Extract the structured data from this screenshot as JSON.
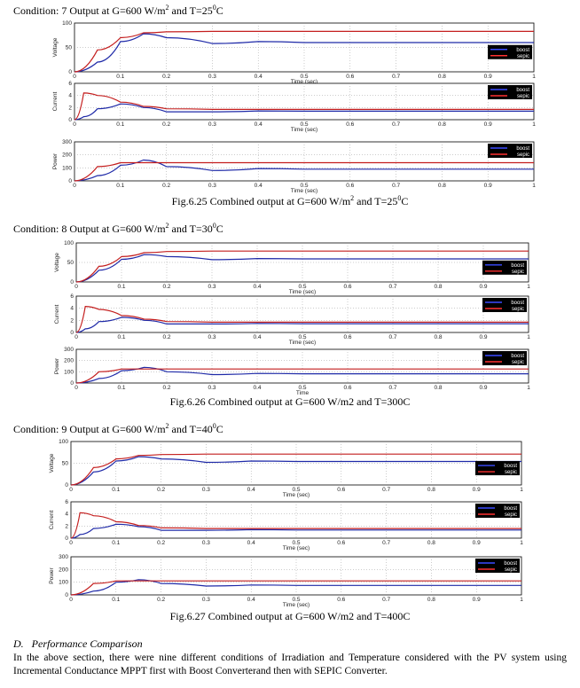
{
  "conditions": [
    {
      "pre": "Condition: 7 Output at G=600 W/m",
      "mid": " and T=25",
      "post": "C",
      "sup1": "2",
      "sup2": "0"
    },
    {
      "pre": "Condition: 8 Output at G=600 W/m",
      "mid": " and T=30",
      "post": "C",
      "sup1": "2",
      "sup2": "0"
    },
    {
      "pre": "Condition: 9 Output at G=600 W/m",
      "mid": " and T=40",
      "post": "C",
      "sup1": "2",
      "sup2": "0"
    }
  ],
  "captions": [
    {
      "pre": "Fig.6.25 Combined output at G=600 W/m",
      "mid": " and T=25",
      "post": "C",
      "sup1": "2",
      "sup2": "0"
    },
    {
      "text": "Fig.6.26 Combined output at G=600 W/m2 and T=300C"
    },
    {
      "text": "Fig.6.27 Combined output at G=600 W/m2 and T=400C"
    }
  ],
  "section": {
    "label": "D.",
    "title": "Performance Comparison"
  },
  "paragraph": "In the above section, there were nine different conditions of Irradiation and Temperature considered with the PV system using Incremental Conductance MPPT first with Boost Converterand then with SEPIC Converter.",
  "colors": {
    "boost": "#1f2aa8",
    "sepic": "#c41e1e",
    "grid": "#9a9a9a"
  },
  "chart_data": [
    {
      "type": "line",
      "figure": "Fig.6.25",
      "panel": "voltage",
      "ylabel": "Voltage",
      "xlabel": "Time (sec)",
      "xlim": [
        0,
        1
      ],
      "ylim": [
        0,
        100
      ],
      "yticks": [
        0,
        50,
        100
      ],
      "x": [
        0,
        0.05,
        0.1,
        0.15,
        0.2,
        0.3,
        0.4,
        0.5,
        0.6,
        0.7,
        0.8,
        0.9,
        1
      ],
      "series": [
        {
          "name": "boost",
          "values": [
            0,
            20,
            62,
            78,
            70,
            58,
            62,
            60,
            60,
            60,
            60,
            60,
            60
          ]
        },
        {
          "name": "sepic",
          "values": [
            0,
            45,
            70,
            80,
            82,
            83,
            83,
            83,
            83,
            83,
            83,
            83,
            83
          ]
        }
      ],
      "legend": "right",
      "grid": true
    },
    {
      "type": "line",
      "figure": "Fig.6.25",
      "panel": "current",
      "ylabel": "Current",
      "xlabel": "Time (sec)",
      "xlim": [
        0,
        1
      ],
      "ylim": [
        0,
        6
      ],
      "yticks": [
        0,
        2,
        4,
        6
      ],
      "x": [
        0,
        0.02,
        0.05,
        0.1,
        0.15,
        0.2,
        0.3,
        0.4,
        0.5,
        0.6,
        0.7,
        0.8,
        0.9,
        1
      ],
      "series": [
        {
          "name": "boost",
          "values": [
            0,
            0.5,
            1.8,
            2.6,
            2.0,
            1.3,
            1.3,
            1.45,
            1.4,
            1.4,
            1.4,
            1.4,
            1.4,
            1.4
          ]
        },
        {
          "name": "sepic",
          "values": [
            0,
            4.4,
            4.0,
            2.9,
            2.2,
            1.8,
            1.7,
            1.7,
            1.7,
            1.7,
            1.7,
            1.7,
            1.7,
            1.7
          ]
        }
      ],
      "legend": "top-right",
      "grid": true
    },
    {
      "type": "line",
      "figure": "Fig.6.25",
      "panel": "power",
      "ylabel": "Power",
      "xlabel": "Time (sec)",
      "xlim": [
        0,
        1
      ],
      "ylim": [
        0,
        300
      ],
      "yticks": [
        0,
        100,
        200,
        300
      ],
      "x": [
        0,
        0.05,
        0.1,
        0.15,
        0.2,
        0.3,
        0.4,
        0.5,
        0.6,
        0.7,
        0.8,
        0.9,
        1
      ],
      "series": [
        {
          "name": "boost",
          "values": [
            0,
            40,
            120,
            160,
            110,
            80,
            95,
            90,
            90,
            90,
            90,
            90,
            90
          ]
        },
        {
          "name": "sepic",
          "values": [
            0,
            110,
            140,
            140,
            140,
            140,
            140,
            140,
            140,
            140,
            140,
            140,
            140
          ]
        }
      ],
      "legend": "top-right",
      "grid": true
    },
    {
      "type": "line",
      "figure": "Fig.6.26",
      "panel": "voltage",
      "ylabel": "Voltage",
      "xlabel": "Time (sec)",
      "xlim": [
        0,
        1
      ],
      "ylim": [
        0,
        100
      ],
      "yticks": [
        0,
        50,
        100
      ],
      "x": [
        0,
        0.05,
        0.1,
        0.15,
        0.2,
        0.3,
        0.4,
        0.5,
        0.6,
        0.7,
        0.8,
        0.9,
        1
      ],
      "series": [
        {
          "name": "boost",
          "values": [
            0,
            30,
            58,
            70,
            65,
            57,
            60,
            59,
            59,
            59,
            59,
            59,
            59
          ]
        },
        {
          "name": "sepic",
          "values": [
            0,
            40,
            65,
            75,
            78,
            79,
            79,
            79,
            79,
            79,
            79,
            79,
            79
          ]
        }
      ],
      "legend": "right",
      "grid": true
    },
    {
      "type": "line",
      "figure": "Fig.6.26",
      "panel": "current",
      "ylabel": "Current",
      "xlabel": "Time (sec)",
      "xlim": [
        0,
        1
      ],
      "ylim": [
        0,
        6
      ],
      "yticks": [
        0,
        2,
        4,
        6
      ],
      "x": [
        0,
        0.02,
        0.05,
        0.1,
        0.15,
        0.2,
        0.3,
        0.4,
        0.5,
        0.6,
        0.7,
        0.8,
        0.9,
        1
      ],
      "series": [
        {
          "name": "boost",
          "values": [
            0,
            0.6,
            1.8,
            2.5,
            2.0,
            1.4,
            1.4,
            1.5,
            1.45,
            1.45,
            1.45,
            1.45,
            1.45,
            1.45
          ]
        },
        {
          "name": "sepic",
          "values": [
            0,
            4.3,
            3.8,
            2.8,
            2.2,
            1.8,
            1.7,
            1.7,
            1.7,
            1.7,
            1.7,
            1.7,
            1.7,
            1.7
          ]
        }
      ],
      "legend": "top-right",
      "grid": true
    },
    {
      "type": "line",
      "figure": "Fig.6.26",
      "panel": "power",
      "ylabel": "Power",
      "xlabel": "Time",
      "xlim": [
        0,
        1
      ],
      "ylim": [
        0,
        300
      ],
      "yticks": [
        0,
        100,
        200,
        300
      ],
      "x": [
        0,
        0.05,
        0.1,
        0.15,
        0.2,
        0.3,
        0.4,
        0.5,
        0.6,
        0.7,
        0.8,
        0.9,
        1
      ],
      "series": [
        {
          "name": "boost",
          "values": [
            0,
            40,
            110,
            140,
            100,
            75,
            85,
            82,
            82,
            82,
            82,
            82,
            82
          ]
        },
        {
          "name": "sepic",
          "values": [
            0,
            100,
            125,
            125,
            125,
            125,
            125,
            125,
            125,
            125,
            125,
            125,
            125
          ]
        }
      ],
      "legend": "top-right",
      "grid": true
    },
    {
      "type": "line",
      "figure": "Fig.6.27",
      "panel": "voltage",
      "ylabel": "Voltage",
      "xlabel": "Time (sec)",
      "xlim": [
        0,
        1
      ],
      "ylim": [
        0,
        100
      ],
      "yticks": [
        0,
        50,
        100
      ],
      "x": [
        0,
        0.05,
        0.1,
        0.15,
        0.2,
        0.3,
        0.4,
        0.5,
        0.6,
        0.7,
        0.8,
        0.9,
        1
      ],
      "series": [
        {
          "name": "boost",
          "values": [
            0,
            30,
            55,
            65,
            60,
            52,
            55,
            54,
            54,
            54,
            54,
            54,
            54
          ]
        },
        {
          "name": "sepic",
          "values": [
            0,
            40,
            60,
            68,
            70,
            71,
            71,
            71,
            71,
            71,
            71,
            71,
            71
          ]
        }
      ],
      "legend": "right",
      "grid": true
    },
    {
      "type": "line",
      "figure": "Fig.6.27",
      "panel": "current",
      "ylabel": "Current",
      "xlabel": "Time (sec)",
      "xlim": [
        0,
        1
      ],
      "ylim": [
        0,
        6
      ],
      "yticks": [
        0,
        2,
        4,
        6
      ],
      "x": [
        0,
        0.02,
        0.05,
        0.1,
        0.15,
        0.2,
        0.3,
        0.4,
        0.5,
        0.6,
        0.7,
        0.8,
        0.9,
        1
      ],
      "series": [
        {
          "name": "boost",
          "values": [
            0,
            0.6,
            1.6,
            2.3,
            1.9,
            1.3,
            1.3,
            1.4,
            1.35,
            1.35,
            1.35,
            1.35,
            1.35,
            1.35
          ]
        },
        {
          "name": "sepic",
          "values": [
            0,
            4.2,
            3.7,
            2.7,
            2.1,
            1.7,
            1.6,
            1.6,
            1.6,
            1.6,
            1.6,
            1.6,
            1.6,
            1.6
          ]
        }
      ],
      "legend": "top-right",
      "grid": true
    },
    {
      "type": "line",
      "figure": "Fig.6.27",
      "panel": "power",
      "ylabel": "Power",
      "xlabel": "Time (sec)",
      "xlim": [
        0,
        1
      ],
      "ylim": [
        0,
        300
      ],
      "yticks": [
        0,
        100,
        200,
        300
      ],
      "x": [
        0,
        0.05,
        0.1,
        0.15,
        0.2,
        0.3,
        0.4,
        0.5,
        0.6,
        0.7,
        0.8,
        0.9,
        1
      ],
      "series": [
        {
          "name": "boost",
          "values": [
            0,
            30,
            100,
            120,
            90,
            70,
            78,
            75,
            75,
            75,
            75,
            75,
            75
          ]
        },
        {
          "name": "sepic",
          "values": [
            0,
            90,
            110,
            110,
            110,
            110,
            110,
            110,
            110,
            110,
            110,
            110,
            110
          ]
        }
      ],
      "legend": "top-right",
      "grid": true
    }
  ]
}
